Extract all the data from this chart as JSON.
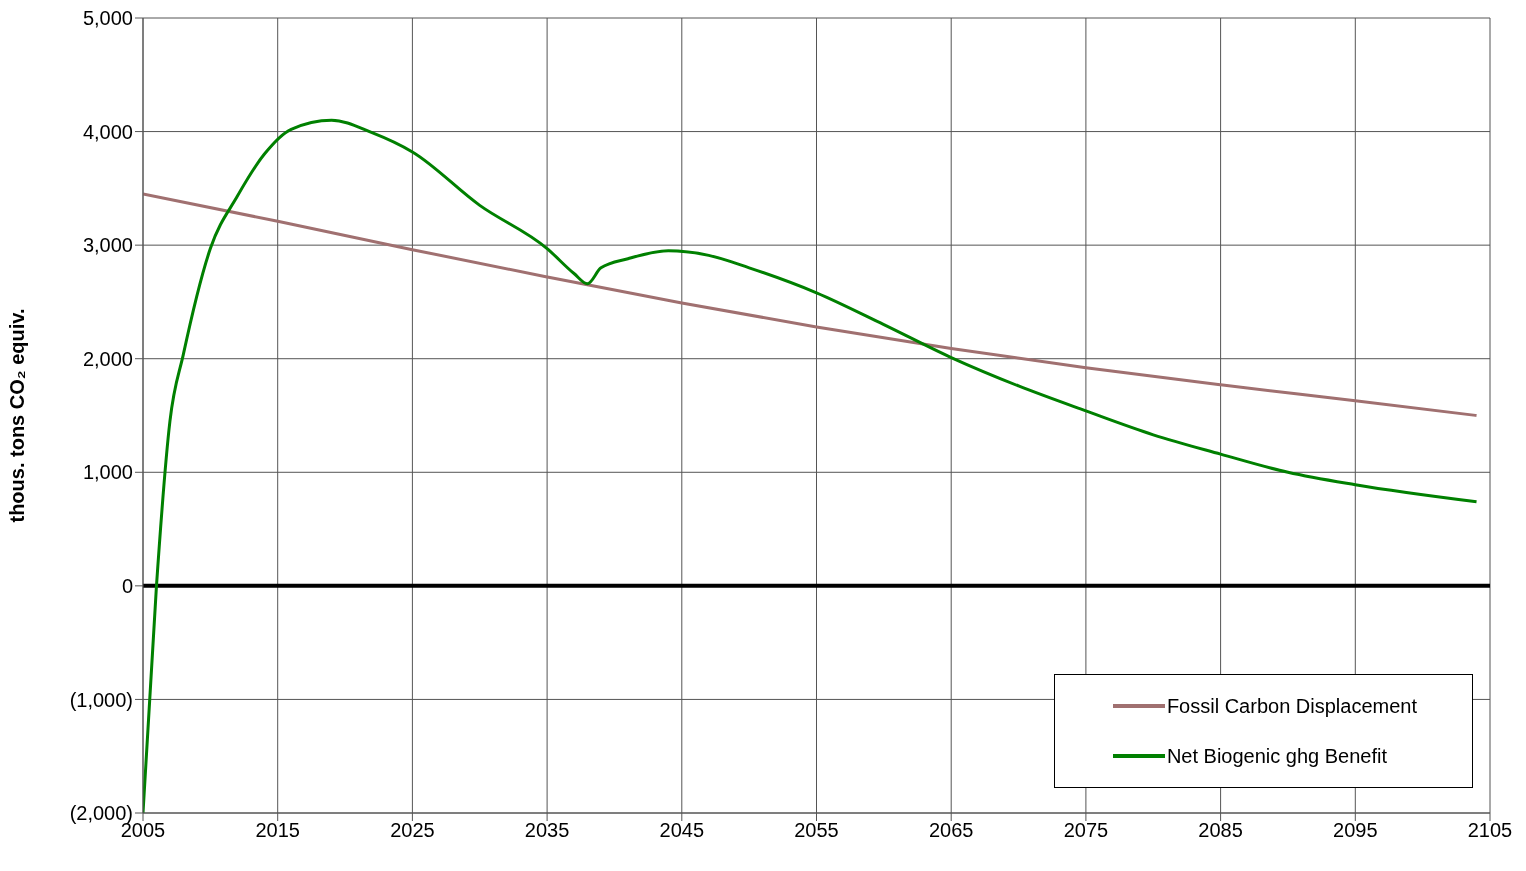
{
  "chart_data": {
    "type": "line",
    "ylabel": "thous. tons CO₂ equiv.",
    "xlim": [
      2005,
      2105
    ],
    "xticks": [
      2005,
      2015,
      2025,
      2035,
      2045,
      2055,
      2065,
      2075,
      2085,
      2095,
      2105
    ],
    "ylim": [
      -2000,
      5000
    ],
    "yticks": [
      {
        "value": -2000,
        "label": "(2,000)"
      },
      {
        "value": -1000,
        "label": "(1,000)"
      },
      {
        "value": 0,
        "label": "0"
      },
      {
        "value": 1000,
        "label": "1,000"
      },
      {
        "value": 2000,
        "label": "2,000"
      },
      {
        "value": 3000,
        "label": "3,000"
      },
      {
        "value": 4000,
        "label": "4,000"
      },
      {
        "value": 5000,
        "label": "5,000"
      }
    ],
    "grid": true,
    "legend": "bottom right",
    "marker": "none",
    "line_style": "solid",
    "ref_lines": [
      {
        "axis": "y",
        "value": 0,
        "color": "#000000"
      }
    ],
    "series": [
      {
        "name": "Fossil Carbon Displacement",
        "color": "#a07070",
        "x": [
          2005,
          2015,
          2025,
          2035,
          2045,
          2055,
          2065,
          2075,
          2085,
          2095,
          2104
        ],
        "values": [
          3450,
          3210,
          2960,
          2720,
          2490,
          2280,
          2090,
          1920,
          1770,
          1630,
          1500
        ]
      },
      {
        "name": "Net Biogenic ghg Benefit",
        "color": "#008000",
        "x": [
          2005,
          2006,
          2007,
          2008,
          2010,
          2012,
          2014,
          2016,
          2019,
          2022,
          2025,
          2030,
          2035,
          2037,
          2038,
          2039,
          2041,
          2044,
          2047,
          2050,
          2055,
          2060,
          2065,
          2070,
          2075,
          2080,
          2085,
          2090,
          2095,
          2104
        ],
        "values": [
          -2000,
          0,
          1450,
          2040,
          2970,
          3430,
          3800,
          4020,
          4100,
          3990,
          3820,
          3350,
          2970,
          2750,
          2660,
          2800,
          2880,
          2950,
          2910,
          2800,
          2580,
          2300,
          2010,
          1760,
          1540,
          1330,
          1160,
          1000,
          890,
          740
        ]
      }
    ]
  }
}
